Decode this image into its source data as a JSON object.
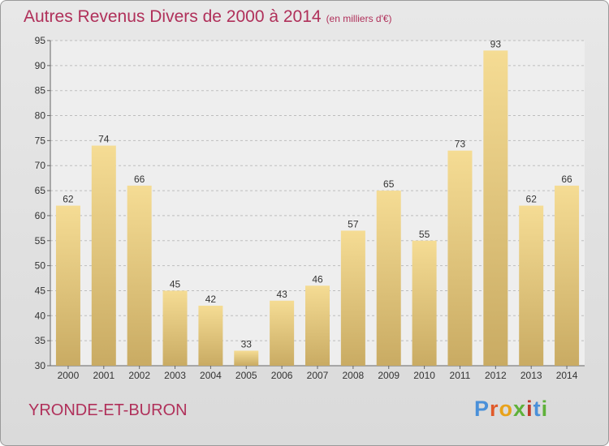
{
  "title": "Autres Revenus Divers de 2000 à 2014",
  "unit": "(en milliers d'€)",
  "town": "YRONDE-ET-BURON",
  "logo": {
    "letters": [
      "P",
      "r",
      "o",
      "x",
      "i",
      "t",
      "i"
    ],
    "colors": [
      "#4a90d9",
      "#e05a2a",
      "#e8a21a",
      "#5fb13a",
      "#c0392b",
      "#4a90d9",
      "#5fb13a"
    ]
  },
  "chart_data": {
    "type": "bar",
    "categories": [
      "2000",
      "2001",
      "2002",
      "2003",
      "2004",
      "2005",
      "2006",
      "2007",
      "2008",
      "2009",
      "2010",
      "2011",
      "2012",
      "2013",
      "2014"
    ],
    "values": [
      62,
      74,
      66,
      45,
      42,
      33,
      43,
      46,
      57,
      65,
      55,
      73,
      93,
      62,
      66
    ],
    "ylim": [
      30,
      95
    ],
    "yticks": [
      30,
      35,
      40,
      45,
      50,
      55,
      60,
      65,
      70,
      75,
      80,
      85,
      90,
      95
    ],
    "grid": true
  }
}
